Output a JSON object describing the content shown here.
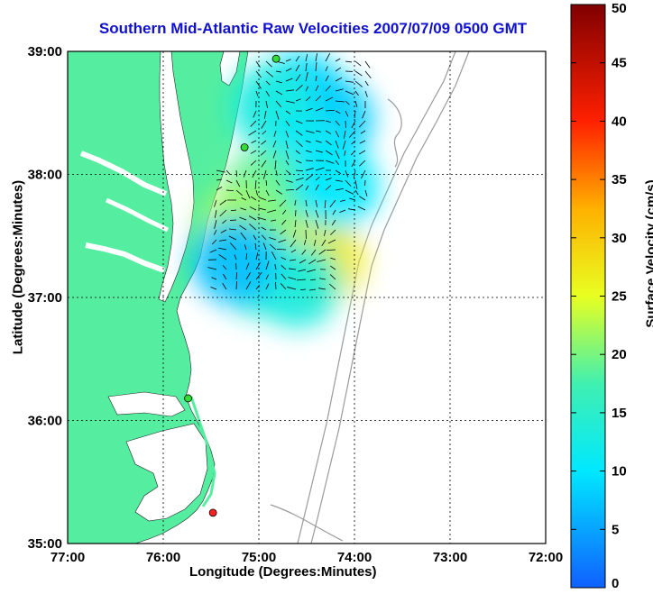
{
  "title": "Southern Mid-Atlantic Raw Velocities 2007/07/09 0500 GMT",
  "xlabel": "Longitude (Degrees:Minutes)",
  "ylabel": "Latitude (Degrees:Minutes)",
  "colorbar": {
    "label": "Surface Velocity (cm/s)",
    "min": 0,
    "max": 50,
    "ticks": [
      "0",
      "5",
      "10",
      "15",
      "20",
      "25",
      "30",
      "35",
      "40",
      "45",
      "50"
    ]
  },
  "axes": {
    "x_ticks": [
      "77:00",
      "76:00",
      "75:00",
      "74:00",
      "73:00",
      "72:00"
    ],
    "y_ticks": [
      "39:00",
      "38:00",
      "37:00",
      "36:00",
      "35:00"
    ],
    "x_range_deg_west": [
      77,
      72
    ],
    "y_range_deg_north": [
      35,
      39
    ],
    "grid": true
  },
  "colors": {
    "land": "#55eea0",
    "water": "#ffffff",
    "bathymetry": "#9a9a9a",
    "title": "#1010d0",
    "station_active": "#33dd33",
    "station_inactive": "#ff2020"
  },
  "stations": [
    {
      "lon": -74.82,
      "lat": 38.94,
      "status": "active"
    },
    {
      "lon": -75.15,
      "lat": 38.22,
      "status": "active"
    },
    {
      "lon": -75.74,
      "lat": 36.18,
      "status": "active"
    },
    {
      "lon": -75.48,
      "lat": 35.25,
      "status": "inactive"
    }
  ],
  "velocity_patches": [
    {
      "lon": -74.55,
      "lat": 38.65,
      "speed": 9
    },
    {
      "lon": -74.25,
      "lat": 38.45,
      "speed": 8
    },
    {
      "lon": -74.85,
      "lat": 38.55,
      "speed": 13
    },
    {
      "lon": -74.5,
      "lat": 38.15,
      "speed": 11
    },
    {
      "lon": -74.95,
      "lat": 37.85,
      "speed": 19
    },
    {
      "lon": -75.2,
      "lat": 37.55,
      "speed": 22
    },
    {
      "lon": -74.6,
      "lat": 37.45,
      "speed": 20
    },
    {
      "lon": -74.35,
      "lat": 37.3,
      "speed": 27
    },
    {
      "lon": -75.0,
      "lat": 37.2,
      "speed": 14
    },
    {
      "lon": -74.6,
      "lat": 37.1,
      "speed": 13
    },
    {
      "lon": -75.25,
      "lat": 37.3,
      "speed": 7
    },
    {
      "lon": -74.2,
      "lat": 37.9,
      "speed": 10
    }
  ]
}
